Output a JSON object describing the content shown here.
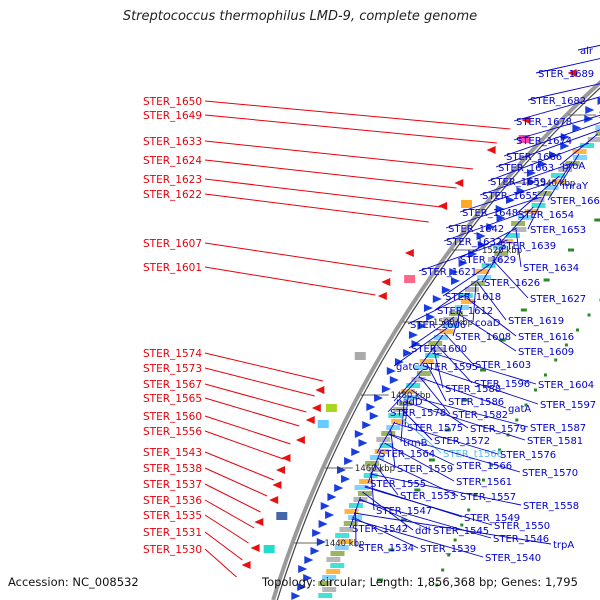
{
  "title": "Streptococcus thermophilus LMD-9, complete genome",
  "accession": "Accession: NC_008532",
  "topology": "Topology: circular; Length: 1,856,368 bp; Genes: 1,795",
  "colors": {
    "left_label": "#e8000b",
    "right_label": "#0000cc",
    "trna_label": "#55bbee",
    "backbone": "#9a9a9a",
    "forward_gene": "#1a3de0",
    "reverse_gene": "#e81010",
    "gc_dot": "#2a8a2a"
  },
  "bp_ticks": [
    "1580 kbp",
    "1560 kbp",
    "1540 kbp",
    "1520 kbp",
    "1500 kbp",
    "1480 kbp",
    "1460 kbp",
    "1440 kbp"
  ],
  "left_labels": [
    "STER_1650",
    "STER_1649",
    "STER_1633",
    "STER_1624",
    "STER_1623",
    "STER_1622",
    "STER_1607",
    "STER_1601",
    "STER_1574",
    "STER_1573",
    "STER_1567",
    "STER_1565",
    "STER_1560",
    "STER_1556",
    "STER_1543",
    "STER_1538",
    "STER_1537",
    "STER_1536",
    "STER_1535",
    "STER_1531",
    "STER_1530"
  ],
  "right_labels": [
    "alr",
    "STER_1689",
    "STER_1682",
    "STER_1678",
    "STER_1674",
    "STER_1666",
    "proA",
    "STER_1663",
    "mraY",
    "STER_1659",
    "STER_1655",
    "STER_1661",
    "STER_1648",
    "STER_1654",
    "STER_1642",
    "STER_1653",
    "STER_1632",
    "STER_1639",
    "STER_1629",
    "STER_1634",
    "STER_1621",
    "STER_1626",
    "STER_1618",
    "STER_1627",
    "STER_1612",
    "STER_1619",
    "STER_1606",
    "coaD",
    "STER_1608",
    "STER_1616",
    "STER_1600",
    "STER_1609",
    "STER_1603",
    "gatC",
    "STER_1595",
    "STER_1596",
    "STER_1604",
    "STER_1588",
    "nadD",
    "STER_1586",
    "gatA",
    "STER_1597",
    "STER_1578",
    "STER_1582",
    "STER_1575",
    "STER_1579",
    "STER_1587",
    "trmB",
    "STER_1572",
    "STER_1581",
    "STER_1564",
    "STER_t1568",
    "STER_1576",
    "STER_1559",
    "STER_1566",
    "STER_1570",
    "STER_1555",
    "STER_1561",
    "STER_1553",
    "STER_1557",
    "STER_1558",
    "STER_1547",
    "STER_1549",
    "STER_1550",
    "STER_1542",
    "ddl",
    "STER_1545",
    "STER_1546",
    "trpA",
    "STER_1534",
    "STER_1539",
    "STER_1540"
  ]
}
